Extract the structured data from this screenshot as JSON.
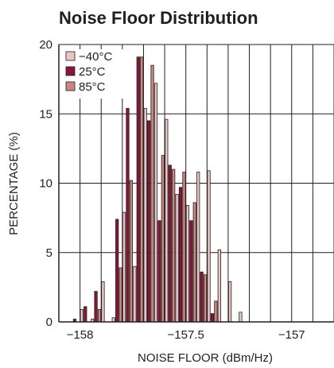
{
  "chart_data": {
    "type": "bar",
    "title": "Noise Floor Distribution",
    "xlabel": "NOISE FLOOR (dBm/Hz)",
    "ylabel": "PERCENTAGE (%)",
    "xlim": [
      -158.1,
      -156.8
    ],
    "ylim": [
      0,
      20
    ],
    "bin_width": 0.05,
    "xticks": [
      -158,
      -157.5,
      -157
    ],
    "xtick_labels": [
      "−158",
      "−157.5",
      "−157"
    ],
    "yticks": [
      0,
      5,
      10,
      15,
      20
    ],
    "grid": true,
    "legend_position": "top-left",
    "x": [
      -158.05,
      -158.0,
      -157.95,
      -157.9,
      -157.85,
      -157.8,
      -157.75,
      -157.7,
      -157.65,
      -157.6,
      -157.55,
      -157.5,
      -157.45,
      -157.4,
      -157.35,
      -157.3,
      -157.25,
      -157.2,
      -157.15,
      -157.1,
      -157.05,
      -157.0,
      -156.95,
      -156.9,
      -156.85
    ],
    "series": [
      {
        "name": "−40°C",
        "color": "#e8c7c2",
        "values": [
          0,
          0.9,
          0.2,
          2.9,
          0.3,
          7.9,
          4.0,
          15.4,
          17.2,
          14.6,
          9.2,
          8.4,
          10.8,
          10.9,
          5.2,
          2.9,
          0.7,
          0.0,
          0.0,
          0.0,
          0.0,
          0.0,
          0.0,
          0.0,
          0.0
        ]
      },
      {
        "name": "25°C",
        "color": "#8b1538",
        "values": [
          0.2,
          1.1,
          2.2,
          0,
          7.4,
          15.4,
          19.1,
          14.5,
          7.3,
          11.3,
          9.7,
          7.3,
          3.6,
          0.6,
          0.0,
          0.0,
          0.0,
          0.0,
          0.0,
          0.0,
          0.0,
          0.0,
          0.0,
          0.0,
          0.0
        ]
      },
      {
        "name": "85°C",
        "color": "#c98780",
        "values": [
          0,
          0,
          0.9,
          0,
          3.9,
          10.2,
          19.1,
          18.5,
          12.0,
          11.0,
          10.8,
          8.6,
          3.4,
          1.5,
          0.0,
          0.0,
          0.0,
          0.0,
          0.0,
          0.0,
          0.0,
          0.0,
          0.0,
          0.0,
          0.0
        ]
      }
    ]
  }
}
